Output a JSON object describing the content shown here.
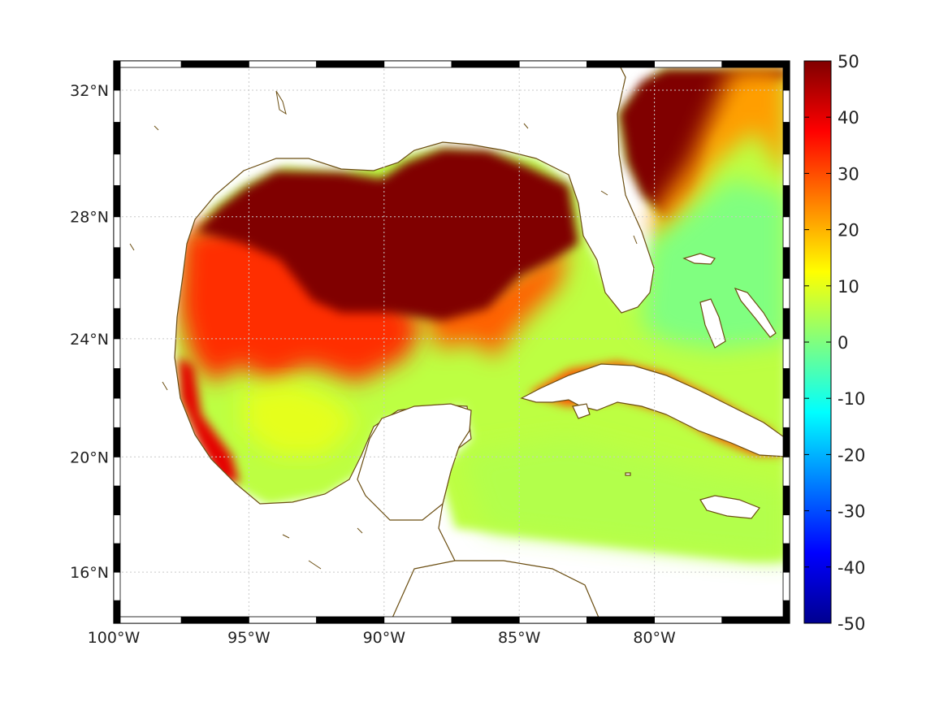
{
  "map": {
    "projection": "mercator",
    "lon_range": [
      -100,
      -75
    ],
    "lat_range": [
      14.2,
      32.9
    ],
    "grid": true,
    "lon_ticks": [
      -100,
      -95,
      -90,
      -85,
      -80
    ],
    "lon_tick_labels": [
      "100°W",
      "95°W",
      "90°W",
      "85°W",
      "80°W"
    ],
    "lat_ticks": [
      16,
      20,
      24,
      28,
      32
    ],
    "lat_tick_labels": [
      "16°N",
      "20°N",
      "24°N",
      "28°N",
      "32°N"
    ],
    "coastline_color": "#6b4e12",
    "land_color": "#ffffff"
  },
  "colorbar": {
    "colormap": "jet",
    "range": [
      -50,
      50
    ],
    "ticks": [
      50,
      40,
      30,
      20,
      10,
      0,
      -10,
      -20,
      -30,
      -40,
      -50
    ],
    "tick_labels": [
      "50",
      "40",
      "30",
      "20",
      "10",
      "0",
      "-10",
      "-20",
      "-30",
      "-40",
      "-50"
    ],
    "placement": "right"
  },
  "field": {
    "background_value": 6,
    "regions": [
      {
        "name": "northern-gulf-shelf",
        "value": 50
      },
      {
        "name": "atlantic-off-georgia-carolina",
        "value": 50
      },
      {
        "name": "western-gulf",
        "value": 33
      },
      {
        "name": "bay-of-campeche",
        "value": 10
      },
      {
        "name": "eastern-gulf",
        "value": 3
      },
      {
        "name": "straits-and-bahamas",
        "value": 0
      },
      {
        "name": "cuba-north-coast",
        "value": 30
      },
      {
        "name": "caribbean",
        "value": 5
      }
    ]
  }
}
